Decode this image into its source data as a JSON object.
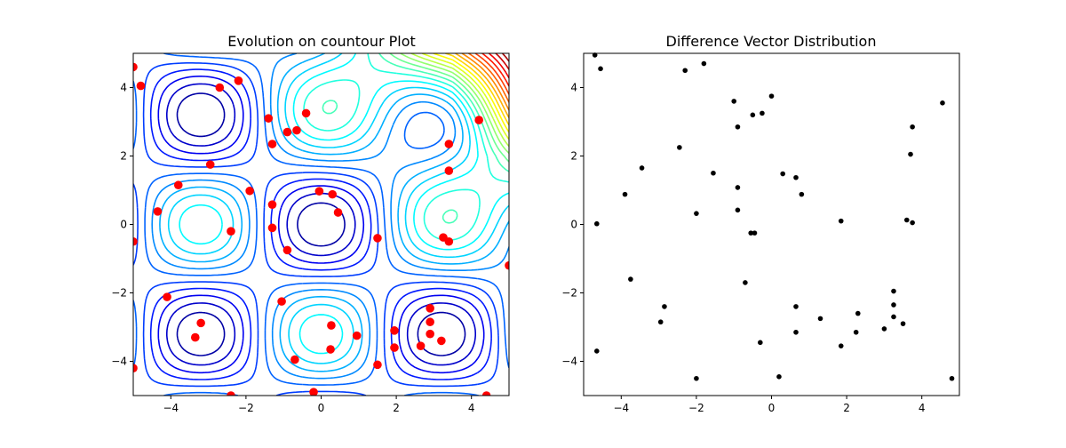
{
  "chart_data": [
    {
      "type": "contour",
      "title": "Evolution on countour Plot",
      "xlim": [
        -5,
        5
      ],
      "ylim": [
        -5,
        5
      ],
      "x_ticks": [
        "−4",
        "−2",
        "0",
        "2",
        "4"
      ],
      "y_ticks": [
        "−4",
        "−2",
        "0",
        "2",
        "4"
      ],
      "grid": false,
      "colormap": "jet",
      "population_color": "#ff0000",
      "points": [
        [
          -5.0,
          4.6
        ],
        [
          -4.8,
          4.05
        ],
        [
          -2.7,
          4.0
        ],
        [
          -2.2,
          4.2
        ],
        [
          -1.4,
          3.1
        ],
        [
          -0.9,
          2.7
        ],
        [
          -0.65,
          2.75
        ],
        [
          -0.4,
          3.25
        ],
        [
          -1.3,
          2.35
        ],
        [
          -2.95,
          1.75
        ],
        [
          -3.8,
          1.15
        ],
        [
          -1.9,
          0.98
        ],
        [
          -4.35,
          0.38
        ],
        [
          -1.3,
          0.58
        ],
        [
          -2.4,
          -0.2
        ],
        [
          -0.05,
          0.97
        ],
        [
          0.3,
          0.88
        ],
        [
          0.45,
          0.35
        ],
        [
          -1.3,
          -0.1
        ],
        [
          -0.9,
          -0.75
        ],
        [
          -5.0,
          -0.5
        ],
        [
          -1.05,
          -2.25
        ],
        [
          -4.1,
          -2.12
        ],
        [
          -3.2,
          -2.88
        ],
        [
          -3.35,
          -3.3
        ],
        [
          -0.7,
          -3.95
        ],
        [
          0.25,
          -3.65
        ],
        [
          0.27,
          -2.95
        ],
        [
          0.95,
          -3.25
        ],
        [
          1.5,
          -4.1
        ],
        [
          -0.2,
          -4.9
        ],
        [
          -2.4,
          -5.0
        ],
        [
          -5.0,
          -4.2
        ],
        [
          1.5,
          -0.4
        ],
        [
          3.25,
          -0.38
        ],
        [
          3.4,
          -0.5
        ],
        [
          5.0,
          -1.2
        ],
        [
          1.95,
          -3.1
        ],
        [
          1.95,
          -3.6
        ],
        [
          2.65,
          -3.55
        ],
        [
          2.9,
          -3.2
        ],
        [
          2.9,
          -2.85
        ],
        [
          2.9,
          -2.45
        ],
        [
          3.2,
          -3.4
        ],
        [
          4.4,
          -5.0
        ],
        [
          4.2,
          3.05
        ],
        [
          3.4,
          2.35
        ],
        [
          3.4,
          1.57
        ]
      ]
    },
    {
      "type": "scatter",
      "title": "Difference Vector Distribution",
      "xlim": [
        -5,
        5
      ],
      "ylim": [
        -5,
        5
      ],
      "x_ticks": [
        "−4",
        "−2",
        "0",
        "2",
        "4"
      ],
      "y_ticks": [
        "−4",
        "−2",
        "0",
        "2",
        "4"
      ],
      "grid": false,
      "point_color": "#000000",
      "points": [
        [
          -4.7,
          4.95
        ],
        [
          -4.55,
          4.55
        ],
        [
          -2.3,
          4.5
        ],
        [
          -1.8,
          4.7
        ],
        [
          -1.0,
          3.6
        ],
        [
          -0.9,
          2.85
        ],
        [
          -0.5,
          3.2
        ],
        [
          -0.25,
          3.25
        ],
        [
          0.0,
          3.75
        ],
        [
          -2.45,
          2.25
        ],
        [
          -3.45,
          1.65
        ],
        [
          -1.55,
          1.5
        ],
        [
          -3.9,
          0.88
        ],
        [
          -0.9,
          1.08
        ],
        [
          -0.9,
          0.42
        ],
        [
          -2.0,
          0.32
        ],
        [
          -4.65,
          0.02
        ],
        [
          -0.55,
          -0.25
        ],
        [
          -0.45,
          -0.25
        ],
        [
          0.3,
          1.48
        ],
        [
          0.65,
          1.37
        ],
        [
          0.8,
          0.88
        ],
        [
          1.85,
          0.1
        ],
        [
          4.55,
          3.55
        ],
        [
          3.75,
          2.85
        ],
        [
          3.7,
          2.05
        ],
        [
          3.6,
          0.13
        ],
        [
          3.75,
          0.05
        ],
        [
          -3.75,
          -1.6
        ],
        [
          -0.7,
          -1.7
        ],
        [
          -2.85,
          -2.4
        ],
        [
          -2.95,
          -2.85
        ],
        [
          0.65,
          -2.4
        ],
        [
          0.65,
          -3.15
        ],
        [
          1.3,
          -2.75
        ],
        [
          2.3,
          -2.6
        ],
        [
          2.25,
          -3.15
        ],
        [
          1.85,
          -3.55
        ],
        [
          3.25,
          -1.95
        ],
        [
          3.25,
          -2.35
        ],
        [
          3.25,
          -2.7
        ],
        [
          3.0,
          -3.05
        ],
        [
          3.5,
          -2.9
        ],
        [
          -0.3,
          -3.45
        ],
        [
          -4.65,
          -3.7
        ],
        [
          -2.0,
          -4.5
        ],
        [
          0.2,
          -4.45
        ],
        [
          4.8,
          -4.5
        ]
      ]
    }
  ]
}
